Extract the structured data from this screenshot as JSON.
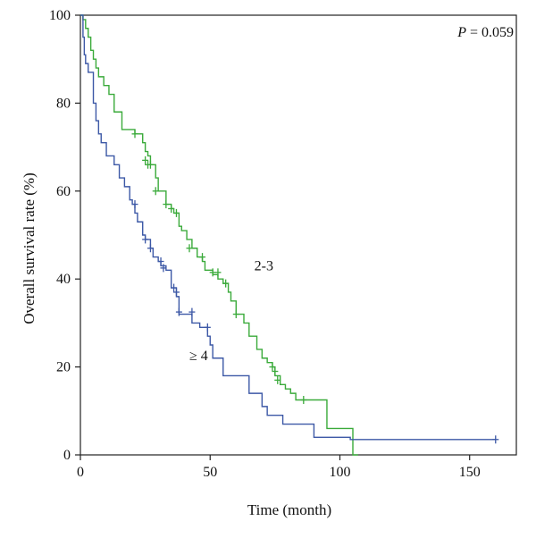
{
  "chart_data": {
    "type": "line",
    "step": true,
    "xlabel": "Time (month)",
    "ylabel": "Overall survival rate (%)",
    "xlim": [
      0,
      168
    ],
    "ylim": [
      0,
      100
    ],
    "xticks": [
      "0",
      "50",
      "100",
      "150"
    ],
    "xtick_values": [
      0,
      50,
      100,
      150
    ],
    "yticks": [
      "0",
      "20",
      "40",
      "60",
      "80",
      "100"
    ],
    "ytick_values": [
      0,
      20,
      40,
      60,
      80,
      100
    ],
    "annotation": {
      "italic": "P",
      "text": " = 0.059"
    },
    "series": [
      {
        "name": "2-3",
        "color": "#3aaa3a",
        "x": [
          0,
          1,
          2,
          3,
          4,
          5,
          6,
          7,
          9,
          11,
          13,
          16,
          21,
          24,
          25,
          26,
          27,
          29,
          30,
          33,
          35,
          36,
          38,
          39,
          41,
          43,
          45,
          47,
          48,
          51,
          53,
          55,
          57,
          58,
          60,
          63,
          65,
          68,
          70,
          72,
          74,
          75,
          77,
          79,
          81,
          83,
          95,
          99,
          105,
          107
        ],
        "y": [
          100,
          99,
          97,
          95,
          92,
          90,
          88,
          86,
          84,
          82,
          78,
          74,
          73,
          71,
          69,
          68,
          66,
          63,
          60,
          57,
          56,
          55,
          52,
          51,
          49,
          47,
          45,
          44,
          42,
          41,
          40,
          39,
          37,
          35,
          32,
          30,
          27,
          24,
          22,
          21,
          20,
          18,
          16,
          15,
          14,
          12.5,
          6,
          6,
          0,
          0
        ],
        "censor_x": [
          21,
          25,
          26,
          27,
          29,
          33,
          35,
          37,
          42,
          47,
          51,
          53,
          56,
          60,
          74,
          75,
          76,
          86
        ],
        "censor_y": [
          73,
          67,
          66,
          66,
          60,
          57,
          56,
          55,
          47,
          45,
          41.5,
          41.5,
          39,
          32,
          20,
          19,
          17,
          12.5
        ]
      },
      {
        "name": "≥ 4",
        "color": "#3c58a6",
        "x": [
          0,
          1,
          1.5,
          2,
          3,
          5,
          6,
          7,
          8,
          10,
          13,
          15,
          17,
          19,
          20,
          21,
          22,
          24,
          25,
          27,
          28,
          30,
          31,
          33,
          35,
          37,
          38,
          43,
          46,
          49,
          50,
          51,
          55,
          65,
          70,
          72,
          78,
          90,
          104,
          160
        ],
        "y": [
          100,
          95,
          91,
          89,
          87,
          80,
          76,
          73,
          71,
          68,
          66,
          63,
          61,
          58,
          57,
          55,
          53,
          50,
          49,
          47,
          45,
          44,
          43,
          42,
          38,
          36,
          32,
          30,
          29,
          27,
          25,
          22,
          18,
          14,
          11,
          9,
          7,
          4,
          3.5,
          3.5
        ],
        "censor_x": [
          21,
          25,
          27,
          31,
          32,
          36,
          37,
          38,
          43,
          49,
          160
        ],
        "censor_y": [
          57,
          49,
          47,
          44,
          42.5,
          38,
          37,
          32.5,
          32.5,
          29,
          3.5
        ]
      }
    ],
    "series_labels": [
      {
        "text": "2-3",
        "x": 67,
        "y": 42
      },
      {
        "text": "≥ 4",
        "x": 42,
        "y": 21.5
      }
    ]
  }
}
